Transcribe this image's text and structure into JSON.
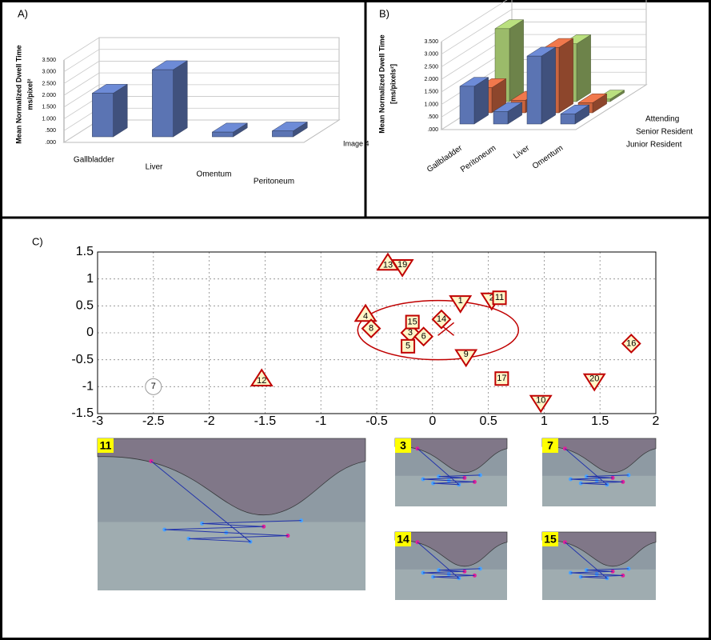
{
  "panels": [
    {
      "label": "A)"
    },
    {
      "label": "B)"
    },
    {
      "label": "C)"
    }
  ],
  "chart_data": [
    {
      "type": "bar",
      "three_d": true,
      "ylabel": [
        "Mean Normalized Dwell Time",
        "ms/pixel²"
      ],
      "categories": [
        "Gallbladder",
        "Liver",
        "Omentum",
        "Peritoneum"
      ],
      "series": [
        {
          "name": "Image 4",
          "color": "#5b74b3",
          "values": [
            1.85,
            2.85,
            0.2,
            0.25
          ]
        }
      ],
      "ylim": [
        0,
        3.5
      ],
      "yticks": [
        {
          "value": 0,
          "label": ".000"
        },
        {
          "value": 0.5,
          "label": ".500"
        },
        {
          "value": 1,
          "label": "1.000"
        },
        {
          "value": 1.5,
          "label": "1.500"
        },
        {
          "value": 2,
          "label": "2.000"
        },
        {
          "value": 2.5,
          "label": "2.500"
        },
        {
          "value": 3,
          "label": "3.000"
        },
        {
          "value": 3.5,
          "label": "3.500"
        }
      ],
      "grid": true
    },
    {
      "type": "bar",
      "three_d": true,
      "ylabel": [
        "Mean Normalized Dwell Time",
        "[ms/pixels²]"
      ],
      "categories": [
        "Gallbladder",
        "Peritoneum",
        "Liver",
        "Omentum"
      ],
      "series": [
        {
          "name": "Junior Resident",
          "color": "#5b74b3",
          "values": [
            1.5,
            0.5,
            2.7,
            0.4
          ]
        },
        {
          "name": "Senior Resident",
          "color": "#c9643f",
          "values": [
            1.0,
            0.5,
            2.6,
            0.4
          ]
        },
        {
          "name": "Attending",
          "color": "#9bbb6a",
          "values": [
            2.9,
            0.2,
            2.3,
            0.1
          ]
        }
      ],
      "ylim": [
        0,
        3.5
      ],
      "yticks": [
        {
          "value": 0,
          "label": ".000"
        },
        {
          "value": 0.5,
          "label": ".500"
        },
        {
          "value": 1,
          "label": "1.000"
        },
        {
          "value": 1.5,
          "label": "1.500"
        },
        {
          "value": 2,
          "label": "2.000"
        },
        {
          "value": 2.5,
          "label": "2.500"
        },
        {
          "value": 3,
          "label": "3.000"
        },
        {
          "value": 3.5,
          "label": "3.500"
        }
      ],
      "grid": true
    },
    {
      "type": "scatter",
      "grid": true,
      "xlim": [
        -3,
        2
      ],
      "ylim": [
        -1.5,
        1.5
      ],
      "xticks": [
        -3,
        -2.5,
        -2,
        -1.5,
        -1,
        -0.5,
        0,
        0.5,
        1,
        1.5,
        2
      ],
      "yticks": [
        -1.5,
        -1,
        -0.5,
        0,
        0.5,
        1,
        1.5
      ],
      "color": "#c00000",
      "ellipse": {
        "cx": 0.05,
        "cy": 0.05,
        "rx": 0.72,
        "ry": 0.55
      },
      "center": {
        "x": 0.12,
        "y": 0.07
      },
      "points": [
        {
          "label": "1",
          "x": 0.25,
          "y": 0.55,
          "marker": "triangle-down"
        },
        {
          "label": "2",
          "x": 0.53,
          "y": 0.6,
          "marker": "triangle-down"
        },
        {
          "label": "11",
          "x": 0.6,
          "y": 0.65,
          "marker": "square"
        },
        {
          "label": "3",
          "x": -0.2,
          "y": 0.0,
          "marker": "diamond"
        },
        {
          "label": "4",
          "x": -0.6,
          "y": 0.35,
          "marker": "triangle-up"
        },
        {
          "label": "5",
          "x": -0.22,
          "y": -0.25,
          "marker": "square"
        },
        {
          "label": "6",
          "x": -0.08,
          "y": -0.07,
          "marker": "diamond"
        },
        {
          "label": "7",
          "x": -2.5,
          "y": -1.0,
          "marker": "circle"
        },
        {
          "label": "8",
          "x": -0.55,
          "y": 0.08,
          "marker": "diamond"
        },
        {
          "label": "9",
          "x": 0.3,
          "y": -0.45,
          "marker": "triangle-down"
        },
        {
          "label": "10",
          "x": 0.97,
          "y": -1.3,
          "marker": "triangle-down"
        },
        {
          "label": "12",
          "x": -1.53,
          "y": -0.85,
          "marker": "triangle-up"
        },
        {
          "label": "13",
          "x": -0.4,
          "y": 1.3,
          "marker": "triangle-up"
        },
        {
          "label": "14",
          "x": 0.08,
          "y": 0.25,
          "marker": "diamond"
        },
        {
          "label": "15",
          "x": -0.18,
          "y": 0.2,
          "marker": "square"
        },
        {
          "label": "16",
          "x": 1.78,
          "y": -0.2,
          "marker": "diamond"
        },
        {
          "label": "17",
          "x": 0.62,
          "y": -0.85,
          "marker": "square"
        },
        {
          "label": "19",
          "x": -0.27,
          "y": 1.22,
          "marker": "triangle-down"
        },
        {
          "label": "20",
          "x": 1.45,
          "y": -0.9,
          "marker": "triangle-down"
        }
      ]
    }
  ],
  "thumbnails": [
    {
      "label": "11"
    },
    {
      "label": "3"
    },
    {
      "label": "7"
    },
    {
      "label": "14"
    },
    {
      "label": "15"
    }
  ]
}
